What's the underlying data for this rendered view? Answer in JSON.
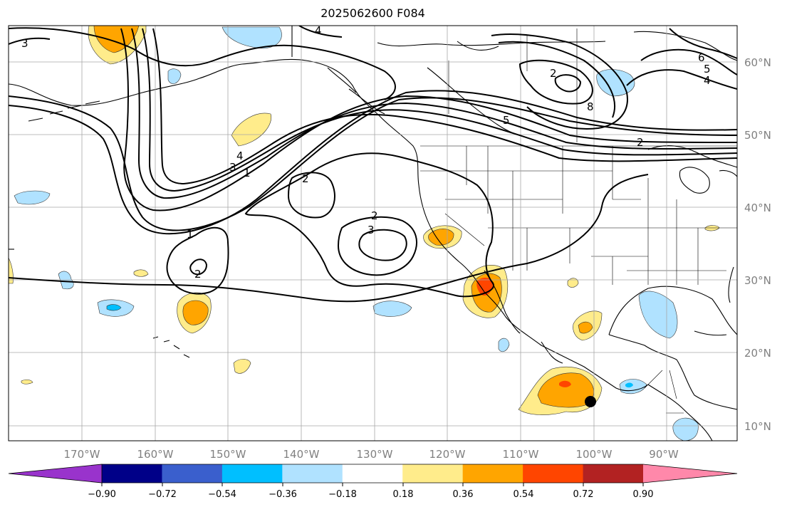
{
  "title": "2025062600 F084",
  "lon_labels": [
    "170°W",
    "160°W",
    "150°W",
    "140°W",
    "130°W",
    "120°W",
    "110°W",
    "100°W",
    "90°W"
  ],
  "lat_labels": [
    "60°N",
    "50°N",
    "40°N",
    "30°N",
    "20°N",
    "10°N"
  ],
  "contour_labels": [
    "4",
    "3",
    "6",
    "2",
    "5",
    "4",
    "8",
    "5",
    "2",
    "3",
    "4",
    "1",
    "2",
    "2",
    "3",
    "1",
    "2"
  ],
  "colorbar": {
    "tick_labels": [
      "−0.90",
      "−0.72",
      "−0.54",
      "−0.36",
      "−0.18",
      "0.18",
      "0.36",
      "0.54",
      "0.72",
      "0.90"
    ],
    "colors": [
      "#9933cc",
      "#000088",
      "#3a5fcd",
      "#00bfff",
      "#b0e2ff",
      "#ffffff",
      "#ffec8b",
      "#ffa500",
      "#ff4500",
      "#b22222",
      "#ff88aa"
    ]
  },
  "marker": {
    "lon": -100,
    "lat": 13
  }
}
